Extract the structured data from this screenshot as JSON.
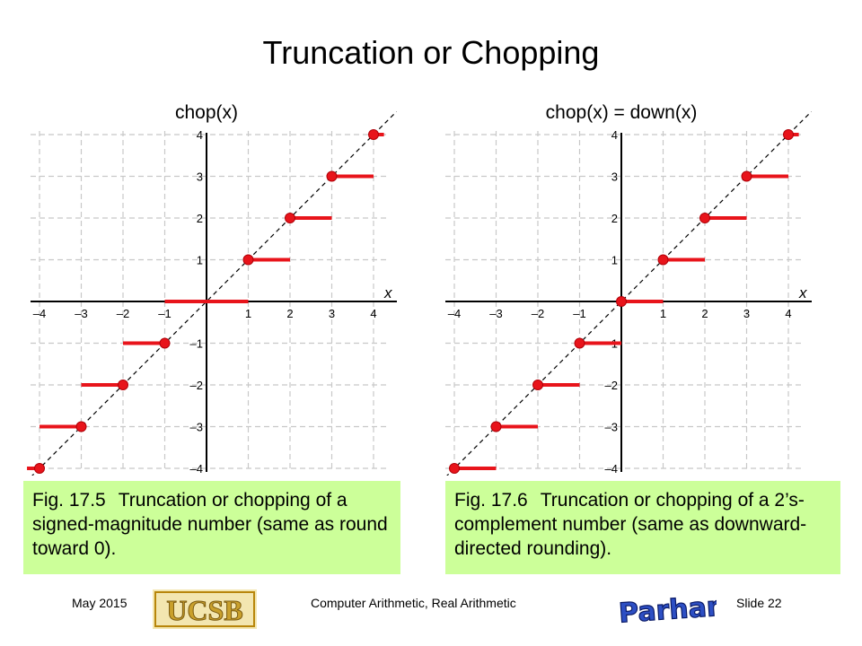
{
  "slide": {
    "title": "Truncation or Chopping",
    "footer_date": "May 2015",
    "footer_course": "Computer Arithmetic, Real Arithmetic",
    "footer_slide": "Slide 22",
    "logo_left_text": "UCSB",
    "logo_right_text": "B Parhami"
  },
  "captions": [
    {
      "number": "Fig. 17.5",
      "text": "Truncation or chopping of a signed-magnitude number (same as round toward 0)."
    },
    {
      "number": "Fig. 17.6",
      "text": "Truncation or chopping of a 2’s-complement number (same as downward-directed rounding)."
    }
  ],
  "colors": {
    "step": "#e8141b",
    "grid": "#c8c8c8",
    "caption_bg": "#ccff99",
    "axis": "#000000"
  },
  "chart_data": [
    {
      "type": "line",
      "title": "chop(x)",
      "xlabel": "x",
      "ylabel": "",
      "xlim": [
        -4,
        4
      ],
      "ylim": [
        -4,
        4
      ],
      "ticks": [
        -4,
        -3,
        -2,
        -1,
        1,
        2,
        3,
        4
      ],
      "tick_labels": [
        "–4",
        "–3",
        "–2",
        "–1",
        "1",
        "2",
        "3",
        "4"
      ],
      "grid": true,
      "diagonal": "y = x (dashed)",
      "steps": [
        {
          "x0": -4.3,
          "x1": -4,
          "y": -4
        },
        {
          "x0": -4,
          "x1": -3,
          "y": -3
        },
        {
          "x0": -3,
          "x1": -2,
          "y": -2
        },
        {
          "x0": -2,
          "x1": -1,
          "y": -1
        },
        {
          "x0": -1,
          "x1": 1,
          "y": 0
        },
        {
          "x0": 1,
          "x1": 2,
          "y": 1
        },
        {
          "x0": 2,
          "x1": 3,
          "y": 2
        },
        {
          "x0": 3,
          "x1": 4,
          "y": 3
        },
        {
          "x0": 4,
          "x1": 4.25,
          "y": 4
        }
      ],
      "points": [
        [
          -4,
          -4
        ],
        [
          -3,
          -3
        ],
        [
          -2,
          -2
        ],
        [
          -1,
          -1
        ],
        [
          1,
          1
        ],
        [
          2,
          2
        ],
        [
          3,
          3
        ],
        [
          4,
          4
        ]
      ]
    },
    {
      "type": "line",
      "title": "chop(x) = down(x)",
      "xlabel": "x",
      "ylabel": "",
      "xlim": [
        -4,
        4
      ],
      "ylim": [
        -4,
        4
      ],
      "ticks": [
        -4,
        -3,
        -2,
        -1,
        1,
        2,
        3,
        4
      ],
      "tick_labels": [
        "–4",
        "–3",
        "–2",
        "–1",
        "1",
        "2",
        "3",
        "4"
      ],
      "grid": true,
      "diagonal": "y = x (dashed)",
      "steps": [
        {
          "x0": -4,
          "x1": -3,
          "y": -4
        },
        {
          "x0": -3,
          "x1": -2,
          "y": -3
        },
        {
          "x0": -2,
          "x1": -1,
          "y": -2
        },
        {
          "x0": -1,
          "x1": 0,
          "y": -1
        },
        {
          "x0": 0,
          "x1": 1,
          "y": 0
        },
        {
          "x0": 1,
          "x1": 2,
          "y": 1
        },
        {
          "x0": 2,
          "x1": 3,
          "y": 2
        },
        {
          "x0": 3,
          "x1": 4,
          "y": 3
        },
        {
          "x0": 4,
          "x1": 4.25,
          "y": 4
        }
      ],
      "points": [
        [
          -4,
          -4
        ],
        [
          -3,
          -3
        ],
        [
          -2,
          -2
        ],
        [
          -1,
          -1
        ],
        [
          0,
          0
        ],
        [
          1,
          1
        ],
        [
          2,
          2
        ],
        [
          3,
          3
        ],
        [
          4,
          4
        ]
      ]
    }
  ]
}
